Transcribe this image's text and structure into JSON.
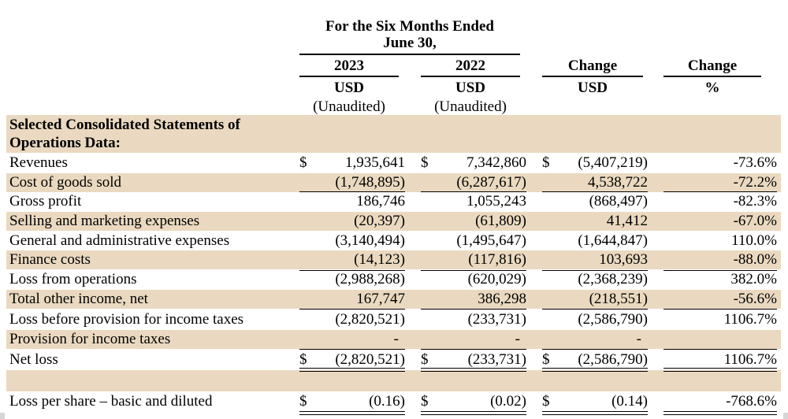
{
  "header": {
    "period_line1": "For the Six Months Ended",
    "period_line2": "June 30,",
    "columns": [
      {
        "year": "2023",
        "currency": "USD",
        "note": "(Unaudited)"
      },
      {
        "year": "2022",
        "currency": "USD",
        "note": "(Unaudited)"
      },
      {
        "year": "Change",
        "currency": "USD",
        "note": ""
      },
      {
        "year": "Change",
        "currency": "%",
        "note": ""
      }
    ]
  },
  "section": {
    "title_line1": "Selected Consolidated Statements of",
    "title_line2": "Operations Data:"
  },
  "rows": [
    {
      "label": "Revenues",
      "c1": "1,935,641",
      "c2": "7,342,860",
      "c3": "(5,407,219)",
      "c4": "-73.6%",
      "dollar": true
    },
    {
      "label": "Cost of goods sold",
      "c1": "(1,748,895)",
      "c2": "(6,287,617)",
      "c3": "4,538,722",
      "c4": "-72.2%"
    },
    {
      "label": "Gross profit",
      "c1": "186,746",
      "c2": "1,055,243",
      "c3": "(868,497)",
      "c4": "-82.3%"
    },
    {
      "label": "Selling and marketing expenses",
      "c1": "(20,397)",
      "c2": "(61,809)",
      "c3": "41,412",
      "c4": "-67.0%"
    },
    {
      "label": "General and administrative expenses",
      "c1": "(3,140,494)",
      "c2": "(1,495,647)",
      "c3": "(1,644,847)",
      "c4": "110.0%"
    },
    {
      "label": "Finance costs",
      "c1": "(14,123)",
      "c2": "(117,816)",
      "c3": "103,693",
      "c4": "-88.0%"
    },
    {
      "label": "Loss from operations",
      "c1": "(2,988,268)",
      "c2": "(620,029)",
      "c3": "(2,368,239)",
      "c4": "382.0%"
    },
    {
      "label": "Total other income, net",
      "c1": "167,747",
      "c2": "386,298",
      "c3": "(218,551)",
      "c4": "-56.6%"
    },
    {
      "label": "Loss before provision for income taxes",
      "c1": "(2,820,521)",
      "c2": "(233,731)",
      "c3": "(2,586,790)",
      "c4": "1106.7%"
    },
    {
      "label": "Provision for income taxes",
      "c1": "-",
      "c2": "-",
      "c3": "-",
      "c4": ""
    },
    {
      "label": "Net loss",
      "c1": "(2,820,521)",
      "c2": "(233,731)",
      "c3": "(2,586,790)",
      "c4": "1106.7%",
      "dollar": true
    },
    {
      "label": "Loss per share – basic and diluted",
      "c1": "(0.16)",
      "c2": "(0.02)",
      "c3": "(0.14)",
      "c4": "-768.6%",
      "dollar": true
    }
  ],
  "currency_symbol": "$"
}
